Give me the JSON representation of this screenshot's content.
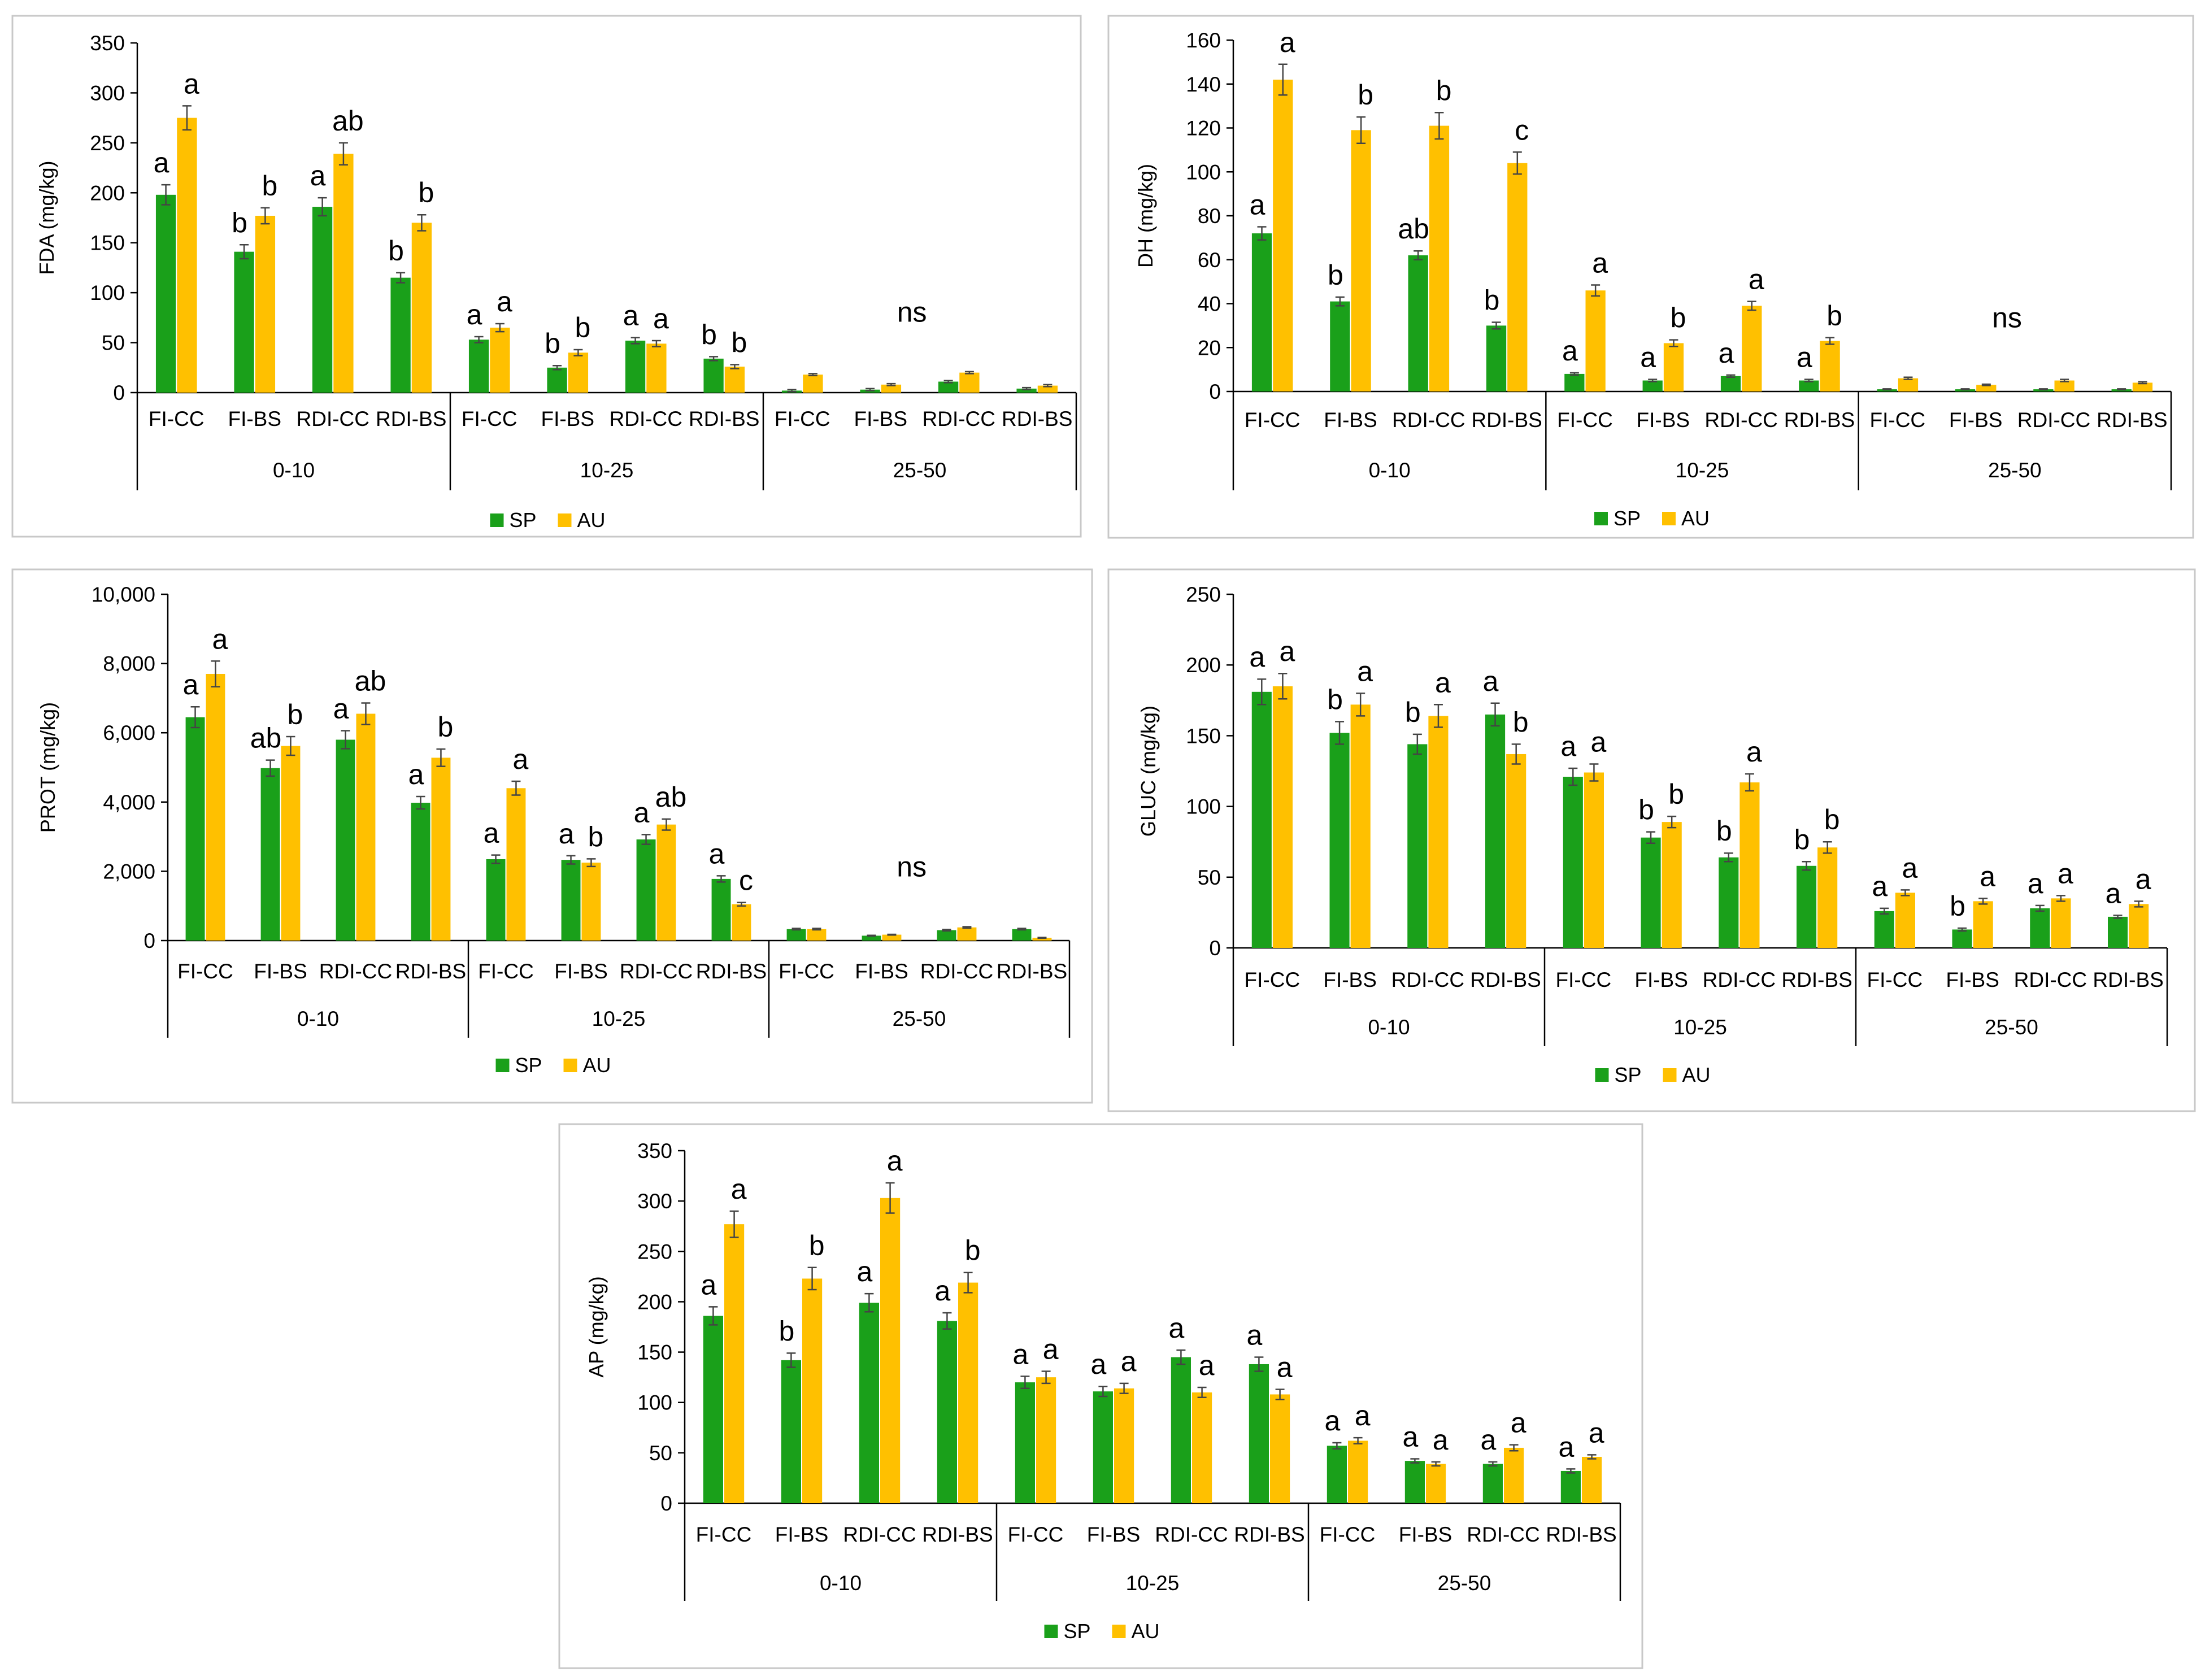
{
  "colors": {
    "SP": "#1aa01a",
    "AU": "#ffc000",
    "axis": "#000000",
    "frame": "#c8c8c8"
  },
  "chart_data": [
    {
      "type": "bar",
      "ylabel": "FDA (mg/kg)",
      "ylim": [
        0,
        350
      ],
      "yticks": [
        0,
        50,
        100,
        150,
        200,
        250,
        300,
        350
      ],
      "yticklabels": [
        "0",
        "50",
        "100",
        "150",
        "200",
        "250",
        "300",
        "350"
      ],
      "treatments": [
        "FI-CC",
        "FI-BS",
        "RDI-CC",
        "RDI-BS"
      ],
      "depths": [
        "0-10",
        "10-25",
        "25-50"
      ],
      "legend": [
        "SP",
        "AU"
      ],
      "legend_position": "bottom-center",
      "series": [
        {
          "name": "SP",
          "values": [
            198,
            141,
            186,
            115,
            53,
            25,
            52,
            34,
            2,
            3,
            11,
            4
          ],
          "errors": [
            10,
            7,
            9,
            5,
            3,
            2,
            3,
            2,
            1,
            1,
            1,
            1
          ]
        },
        {
          "name": "AU",
          "values": [
            275,
            177,
            239,
            170,
            65,
            40,
            49,
            26,
            18,
            8,
            20,
            7
          ],
          "errors": [
            12,
            8,
            11,
            8,
            4,
            3,
            3,
            2,
            1,
            1,
            1,
            1
          ]
        }
      ],
      "letters": {
        "SP": [
          "a",
          "b",
          "a",
          "b",
          "a",
          "b",
          "a",
          "b",
          "",
          "",
          "",
          ""
        ],
        "AU": [
          "a",
          "b",
          "ab",
          "b",
          "a",
          "b",
          "a",
          "b",
          "",
          "",
          "",
          ""
        ]
      },
      "group_annotations": [
        "",
        "",
        "ns"
      ]
    },
    {
      "type": "bar",
      "ylabel": "DH (mg/kg)",
      "ylim": [
        0,
        160
      ],
      "yticks": [
        0,
        20,
        40,
        60,
        80,
        100,
        120,
        140,
        160
      ],
      "yticklabels": [
        "0",
        "20",
        "40",
        "60",
        "80",
        "100",
        "120",
        "140",
        "160"
      ],
      "treatments": [
        "FI-CC",
        "FI-BS",
        "RDI-CC",
        "RDI-BS"
      ],
      "depths": [
        "0-10",
        "10-25",
        "25-50"
      ],
      "legend": [
        "SP",
        "AU"
      ],
      "legend_position": "bottom-center",
      "series": [
        {
          "name": "SP",
          "values": [
            72,
            41,
            62,
            30,
            8,
            5,
            7,
            5,
            1,
            1,
            1,
            1
          ],
          "errors": [
            3,
            2,
            2,
            1.5,
            0.5,
            0.5,
            0.5,
            0.5,
            0.2,
            0.2,
            0.2,
            0.2
          ]
        },
        {
          "name": "AU",
          "values": [
            142,
            119,
            121,
            104,
            46,
            22,
            39,
            23,
            6,
            3,
            5,
            4
          ],
          "errors": [
            7,
            6,
            6,
            5,
            2.5,
            1.5,
            2,
            1.5,
            0.5,
            0.3,
            0.5,
            0.4
          ]
        }
      ],
      "letters": {
        "SP": [
          "a",
          "b",
          "ab",
          "b",
          "a",
          "a",
          "a",
          "a",
          "",
          "",
          "",
          ""
        ],
        "AU": [
          "a",
          "b",
          "b",
          "c",
          "a",
          "b",
          "a",
          "b",
          "",
          "",
          "",
          ""
        ]
      },
      "group_annotations": [
        "",
        "",
        "ns"
      ]
    },
    {
      "type": "bar",
      "ylabel": "PROT (mg/kg)",
      "ylim": [
        0,
        10000
      ],
      "yticks": [
        0,
        2000,
        4000,
        6000,
        8000,
        10000
      ],
      "yticklabels": [
        "0",
        "2,000",
        "4,000",
        "6,000",
        "8,000",
        "10,000"
      ],
      "treatments": [
        "FI-CC",
        "FI-BS",
        "RDI-CC",
        "RDI-BS"
      ],
      "depths": [
        "0-10",
        "10-25",
        "25-50"
      ],
      "legend": [
        "SP",
        "AU"
      ],
      "legend_position": "bottom-center",
      "series": [
        {
          "name": "SP",
          "values": [
            6450,
            4980,
            5800,
            3980,
            2350,
            2330,
            2920,
            1780,
            330,
            140,
            300,
            330
          ],
          "errors": [
            300,
            230,
            260,
            180,
            120,
            120,
            140,
            90,
            20,
            10,
            20,
            20
          ]
        },
        {
          "name": "AU",
          "values": [
            7700,
            5620,
            6550,
            5280,
            4400,
            2250,
            3350,
            1050,
            330,
            170,
            380,
            80
          ],
          "errors": [
            370,
            270,
            310,
            250,
            200,
            110,
            160,
            50,
            20,
            10,
            20,
            10
          ]
        }
      ],
      "letters": {
        "SP": [
          "a",
          "ab",
          "a",
          "a",
          "a",
          "a",
          "a",
          "a",
          "",
          "",
          "",
          ""
        ],
        "AU": [
          "a",
          "b",
          "ab",
          "b",
          "a",
          "b",
          "ab",
          "c",
          "",
          "",
          "",
          ""
        ]
      },
      "group_annotations": [
        "",
        "",
        "ns"
      ]
    },
    {
      "type": "bar",
      "ylabel": "GLUC (mg/kg)",
      "ylim": [
        0,
        250
      ],
      "yticks": [
        0,
        50,
        100,
        150,
        200,
        250
      ],
      "yticklabels": [
        "0",
        "50",
        "100",
        "150",
        "200",
        "250"
      ],
      "treatments": [
        "FI-CC",
        "FI-BS",
        "RDI-CC",
        "RDI-BS"
      ],
      "depths": [
        "0-10",
        "10-25",
        "25-50"
      ],
      "legend": [
        "SP",
        "AU"
      ],
      "legend_position": "bottom-center",
      "series": [
        {
          "name": "SP",
          "values": [
            181,
            152,
            144,
            165,
            121,
            78,
            64,
            58,
            26,
            13,
            28,
            22
          ],
          "errors": [
            9,
            8,
            7,
            8,
            6,
            4,
            3,
            3,
            2,
            1,
            2,
            1
          ]
        },
        {
          "name": "AU",
          "values": [
            185,
            172,
            164,
            137,
            124,
            89,
            117,
            71,
            39,
            33,
            35,
            31
          ],
          "errors": [
            9,
            8,
            8,
            7,
            6,
            4,
            6,
            4,
            2,
            2,
            2,
            2
          ]
        }
      ],
      "letters": {
        "SP": [
          "a",
          "b",
          "b",
          "a",
          "a",
          "b",
          "b",
          "b",
          "a",
          "b",
          "a",
          "a"
        ],
        "AU": [
          "a",
          "a",
          "a",
          "b",
          "a",
          "b",
          "a",
          "b",
          "a",
          "a",
          "a",
          "a"
        ]
      },
      "group_annotations": [
        "",
        "",
        ""
      ]
    },
    {
      "type": "bar",
      "ylabel": "AP (mg/kg)",
      "ylim": [
        0,
        350
      ],
      "yticks": [
        0,
        50,
        100,
        150,
        200,
        250,
        300,
        350
      ],
      "yticklabels": [
        "0",
        "50",
        "100",
        "150",
        "200",
        "250",
        "300",
        "350"
      ],
      "treatments": [
        "FI-CC",
        "FI-BS",
        "RDI-CC",
        "RDI-BS"
      ],
      "depths": [
        "0-10",
        "10-25",
        "25-50"
      ],
      "legend": [
        "SP",
        "AU"
      ],
      "legend_position": "bottom-center",
      "series": [
        {
          "name": "SP",
          "values": [
            186,
            142,
            199,
            181,
            120,
            111,
            145,
            138,
            57,
            42,
            39,
            32
          ],
          "errors": [
            9,
            7,
            9,
            8,
            6,
            5,
            7,
            7,
            3,
            2,
            2,
            2
          ]
        },
        {
          "name": "AU",
          "values": [
            277,
            223,
            303,
            219,
            125,
            114,
            110,
            108,
            62,
            39,
            55,
            46
          ],
          "errors": [
            13,
            11,
            15,
            10,
            6,
            5,
            5,
            5,
            3,
            2,
            3,
            2
          ]
        }
      ],
      "letters": {
        "SP": [
          "a",
          "b",
          "a",
          "a",
          "a",
          "a",
          "a",
          "a",
          "a",
          "a",
          "a",
          "a"
        ],
        "AU": [
          "a",
          "b",
          "a",
          "b",
          "a",
          "a",
          "a",
          "a",
          "a",
          "a",
          "a",
          "a"
        ]
      },
      "group_annotations": [
        "",
        "",
        ""
      ]
    }
  ]
}
